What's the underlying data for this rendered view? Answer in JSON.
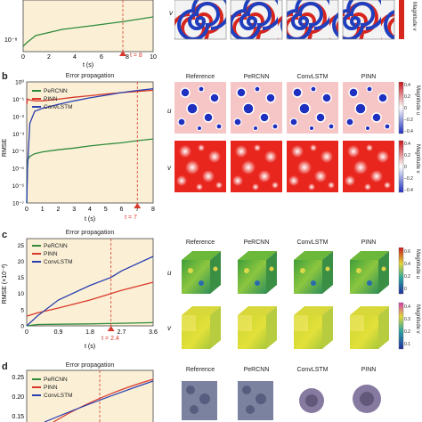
{
  "panels": {
    "a": {
      "letter": "",
      "xlabel": "t (s)",
      "xticks": [
        "0",
        "2",
        "4",
        "6",
        "8",
        "10"
      ],
      "yticks": [
        "10⁻⁸"
      ],
      "marker_label": "t = 8",
      "row_label": "v",
      "colorbar_label": "Magnitude v"
    },
    "b": {
      "letter": "b",
      "plot_title": "Error propagation",
      "ylabel": "RMSE",
      "xlabel": "t (s)",
      "xticks": [
        "0",
        "1",
        "2",
        "3",
        "4",
        "5",
        "6",
        "7",
        "8"
      ],
      "yticks": [
        "10⁰",
        "10⁻¹",
        "10⁻²",
        "10⁻³",
        "10⁻⁴",
        "10⁻⁵",
        "10⁻⁶",
        "10⁻⁷"
      ],
      "legend": [
        "PeRCNN",
        "PINN",
        "ConvLSTM"
      ],
      "marker_label": "t = 7",
      "field_titles": [
        "Reference",
        "PeRCNN",
        "ConvLSTM",
        "PINN"
      ],
      "row_labels": [
        "u",
        "v"
      ],
      "colorbar_u_label": "Magnitude u",
      "colorbar_v_label": "Magnitude v",
      "colorbar_u_ticks": [
        "0.4",
        "0.2",
        "0",
        "−0.2",
        "−0.4"
      ],
      "colorbar_v_ticks": [
        "0.4",
        "0.2",
        "0",
        "−0.2",
        "−0.4"
      ]
    },
    "c": {
      "letter": "c",
      "plot_title": "Error propagation",
      "ylabel": "RMSE (×10⁻²)",
      "xlabel": "t (s)",
      "xticks": [
        "0",
        "0.9",
        "1.8",
        "2.7",
        "3.6"
      ],
      "yticks": [
        "25",
        "20",
        "15",
        "10",
        "5",
        "0"
      ],
      "legend": [
        "PeRCNN",
        "PINN",
        "ConvLSTM"
      ],
      "marker_label": "t = 2.4",
      "field_titles": [
        "Reference",
        "PeRCNN",
        "ConvLSTM",
        "PINN"
      ],
      "row_labels": [
        "u",
        "v"
      ],
      "colorbar_u_label": "Magnitude u",
      "colorbar_v_label": "Magnitude v",
      "colorbar_u_ticks": [
        "0.6",
        "0.4",
        "0.2",
        "0"
      ],
      "colorbar_v_ticks": [
        "0.4",
        "0.3",
        "0.2",
        "0.1"
      ]
    },
    "d": {
      "letter": "d",
      "plot_title": "Error propagation",
      "yticks": [
        "0.25",
        "0.20",
        "0.15"
      ],
      "legend": [
        "PeRCNN",
        "PINN",
        "ConvLSTM"
      ],
      "field_titles": [
        "Reference",
        "PeRCNN",
        "ConvLSTM",
        "PINN"
      ]
    }
  },
  "colors": {
    "percnn": "#2e8b3a",
    "pinn": "#d9382a",
    "convlstm": "#2a3fb0",
    "plot_bg": "#fbf0d6",
    "marker": "#d9382a"
  },
  "chart_data": [
    {
      "type": "line",
      "title": "Error propagation",
      "xlabel": "t (s)",
      "ylabel": "RMSE",
      "yscale": "log",
      "xlim": [
        0,
        8
      ],
      "ylim": [
        1e-07,
        1
      ],
      "series": [
        {
          "name": "PeRCNN",
          "x": [
            0,
            0.05,
            0.2,
            0.5,
            1,
            2,
            3,
            4,
            5,
            6,
            7,
            8
          ],
          "y": [
            1e-07,
            3e-05,
            5e-05,
            7e-05,
            9e-05,
            0.00012,
            0.00015,
            0.0002,
            0.00025,
            0.0003,
            0.0004,
            0.0005
          ]
        },
        {
          "name": "PINN",
          "x": [
            0,
            0.05,
            0.2,
            0.5,
            1,
            2,
            3,
            4,
            5,
            6,
            7,
            8
          ],
          "y": [
            0.05,
            0.1,
            0.09,
            0.08,
            0.08,
            0.1,
            0.13,
            0.16,
            0.2,
            0.24,
            0.28,
            0.33
          ]
        },
        {
          "name": "ConvLSTM",
          "x": [
            0,
            0.05,
            0.2,
            0.5,
            1,
            2,
            3,
            4,
            5,
            6,
            7,
            8
          ],
          "y": [
            1e-07,
            1e-05,
            0.004,
            0.02,
            0.03,
            0.05,
            0.08,
            0.12,
            0.17,
            0.24,
            0.32,
            0.4
          ]
        }
      ],
      "annotation": {
        "x": 7,
        "label": "t = 7"
      }
    },
    {
      "type": "line",
      "title": "Error propagation",
      "xlabel": "t (s)",
      "ylabel": "RMSE (×10⁻²)",
      "xlim": [
        0,
        3.6
      ],
      "ylim": [
        0,
        27
      ],
      "series": [
        {
          "name": "PeRCNN",
          "x": [
            0,
            0.3,
            0.9,
            1.8,
            2.7,
            3.6
          ],
          "y": [
            0,
            0.4,
            0.5,
            0.6,
            0.8,
            1.0
          ]
        },
        {
          "name": "PINN",
          "x": [
            0,
            0.3,
            0.9,
            1.8,
            2.4,
            2.7,
            3.6
          ],
          "y": [
            3,
            4,
            5.5,
            8,
            10,
            11,
            13.5
          ]
        },
        {
          "name": "ConvLSTM",
          "x": [
            0,
            0.3,
            0.9,
            1.8,
            2.4,
            2.7,
            3.6
          ],
          "y": [
            0,
            3,
            8,
            12.5,
            15,
            17,
            21.5
          ]
        }
      ],
      "annotation": {
        "x": 2.4,
        "label": "t = 2.4"
      }
    }
  ]
}
